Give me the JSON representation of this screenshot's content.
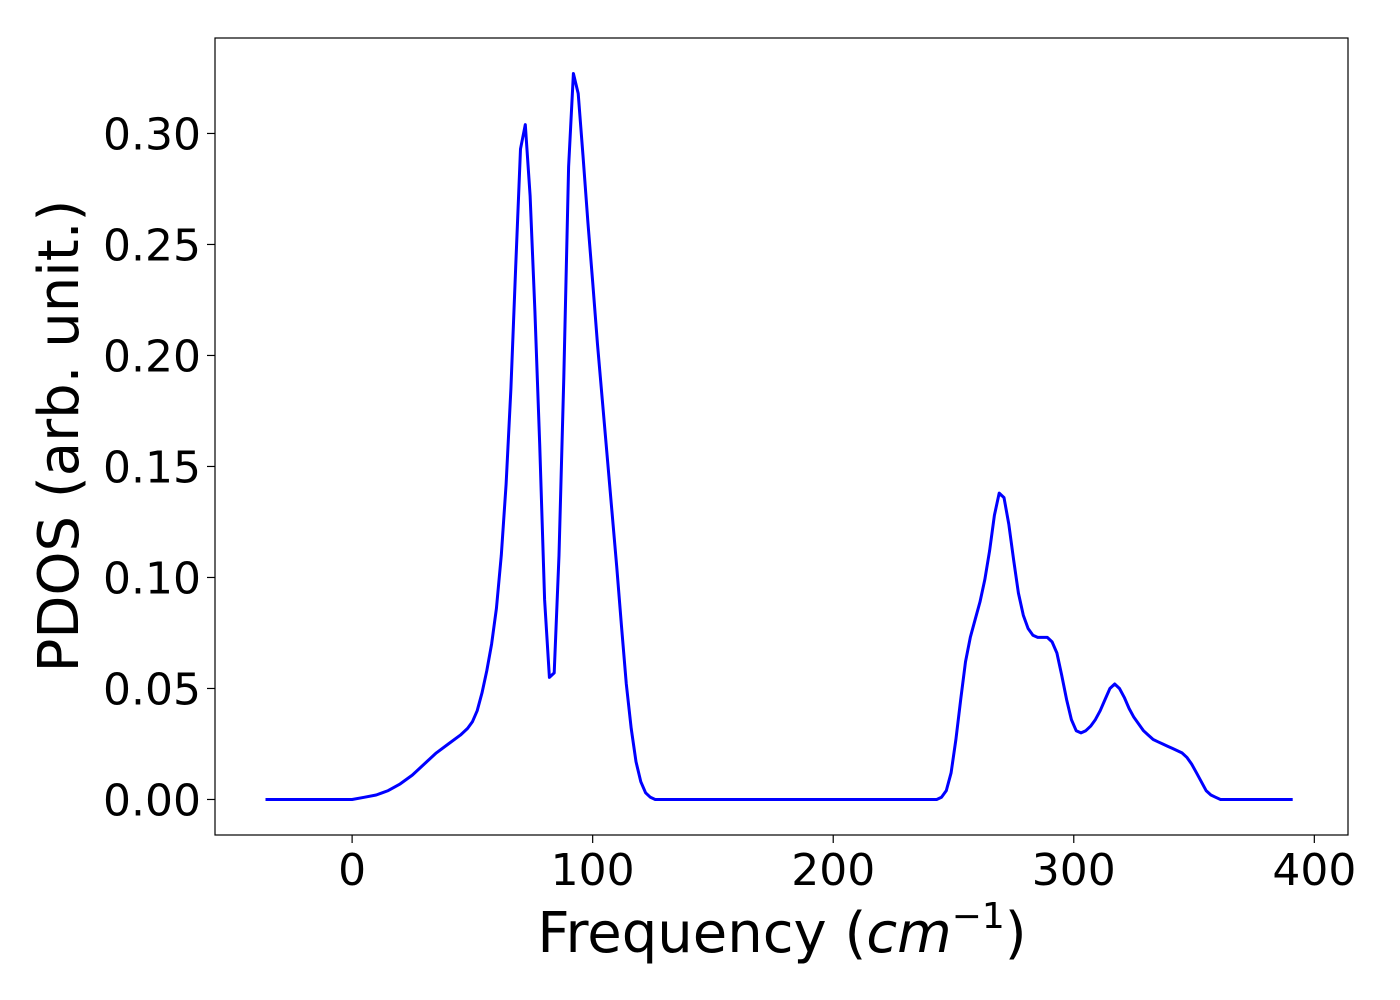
{
  "chart_data": {
    "type": "line",
    "title": "",
    "xlabel_main": "Frequency (",
    "xlabel_math": "cm",
    "xlabel_sup": "−1",
    "xlabel_close": ")",
    "ylabel": "PDOS (arb. unit.)",
    "xlim": [
      -57,
      414
    ],
    "ylim": [
      -0.016,
      0.343
    ],
    "xticks": [
      0,
      100,
      200,
      300,
      400
    ],
    "xtick_labels": [
      "0",
      "100",
      "200",
      "300",
      "400"
    ],
    "yticks": [
      0.0,
      0.05,
      0.1,
      0.15,
      0.2,
      0.25,
      0.3
    ],
    "ytick_labels": [
      "0.00",
      "0.05",
      "0.10",
      "0.15",
      "0.20",
      "0.25",
      "0.30"
    ],
    "grid": false,
    "legend": "none",
    "line_color": "#0000ff",
    "series": [
      {
        "x": [
          -36,
          -20,
          -10,
          0,
          5,
          10,
          15,
          20,
          25,
          30,
          35,
          40,
          45,
          48,
          50,
          52,
          54,
          56,
          58,
          60,
          62,
          64,
          66,
          68,
          70,
          72,
          74,
          76,
          78,
          80,
          82,
          84,
          86,
          88,
          90,
          92,
          94,
          96,
          98,
          100,
          102,
          104,
          106,
          108,
          110,
          112,
          114,
          116,
          118,
          120,
          122,
          124,
          126,
          128,
          130,
          132,
          135,
          140,
          160,
          200,
          240,
          243,
          245,
          247,
          249,
          251,
          253,
          255,
          257,
          259,
          261,
          263,
          265,
          267,
          269,
          271,
          273,
          275,
          277,
          279,
          281,
          283,
          285,
          287,
          289,
          291,
          293,
          295,
          297,
          299,
          301,
          303,
          305,
          307,
          309,
          311,
          313,
          315,
          317,
          319,
          321,
          323,
          325,
          327,
          329,
          331,
          333,
          335,
          337,
          339,
          341,
          343,
          345,
          347,
          349,
          351,
          353,
          355,
          357,
          359,
          361,
          363,
          365,
          370,
          380,
          391
        ],
        "y": [
          0.0,
          0.0,
          0.0,
          0.0,
          0.001,
          0.002,
          0.004,
          0.007,
          0.011,
          0.016,
          0.021,
          0.025,
          0.029,
          0.032,
          0.035,
          0.04,
          0.048,
          0.058,
          0.07,
          0.086,
          0.11,
          0.142,
          0.185,
          0.24,
          0.293,
          0.304,
          0.272,
          0.22,
          0.16,
          0.09,
          0.055,
          0.057,
          0.11,
          0.19,
          0.285,
          0.327,
          0.318,
          0.29,
          0.26,
          0.233,
          0.205,
          0.18,
          0.155,
          0.13,
          0.105,
          0.078,
          0.052,
          0.032,
          0.017,
          0.008,
          0.003,
          0.001,
          0.0,
          0.0,
          0.0,
          0.0,
          0.0,
          0.0,
          0.0,
          0.0,
          0.0,
          0.0,
          0.001,
          0.004,
          0.012,
          0.027,
          0.045,
          0.062,
          0.073,
          0.081,
          0.089,
          0.099,
          0.112,
          0.128,
          0.138,
          0.136,
          0.124,
          0.108,
          0.093,
          0.083,
          0.077,
          0.074,
          0.073,
          0.073,
          0.073,
          0.071,
          0.066,
          0.056,
          0.045,
          0.036,
          0.031,
          0.03,
          0.031,
          0.033,
          0.036,
          0.04,
          0.045,
          0.05,
          0.052,
          0.05,
          0.046,
          0.041,
          0.037,
          0.034,
          0.031,
          0.029,
          0.027,
          0.026,
          0.025,
          0.024,
          0.023,
          0.022,
          0.021,
          0.019,
          0.016,
          0.012,
          0.008,
          0.004,
          0.002,
          0.001,
          0.0,
          0.0,
          0.0,
          0.0,
          0.0,
          0.0
        ]
      }
    ]
  }
}
